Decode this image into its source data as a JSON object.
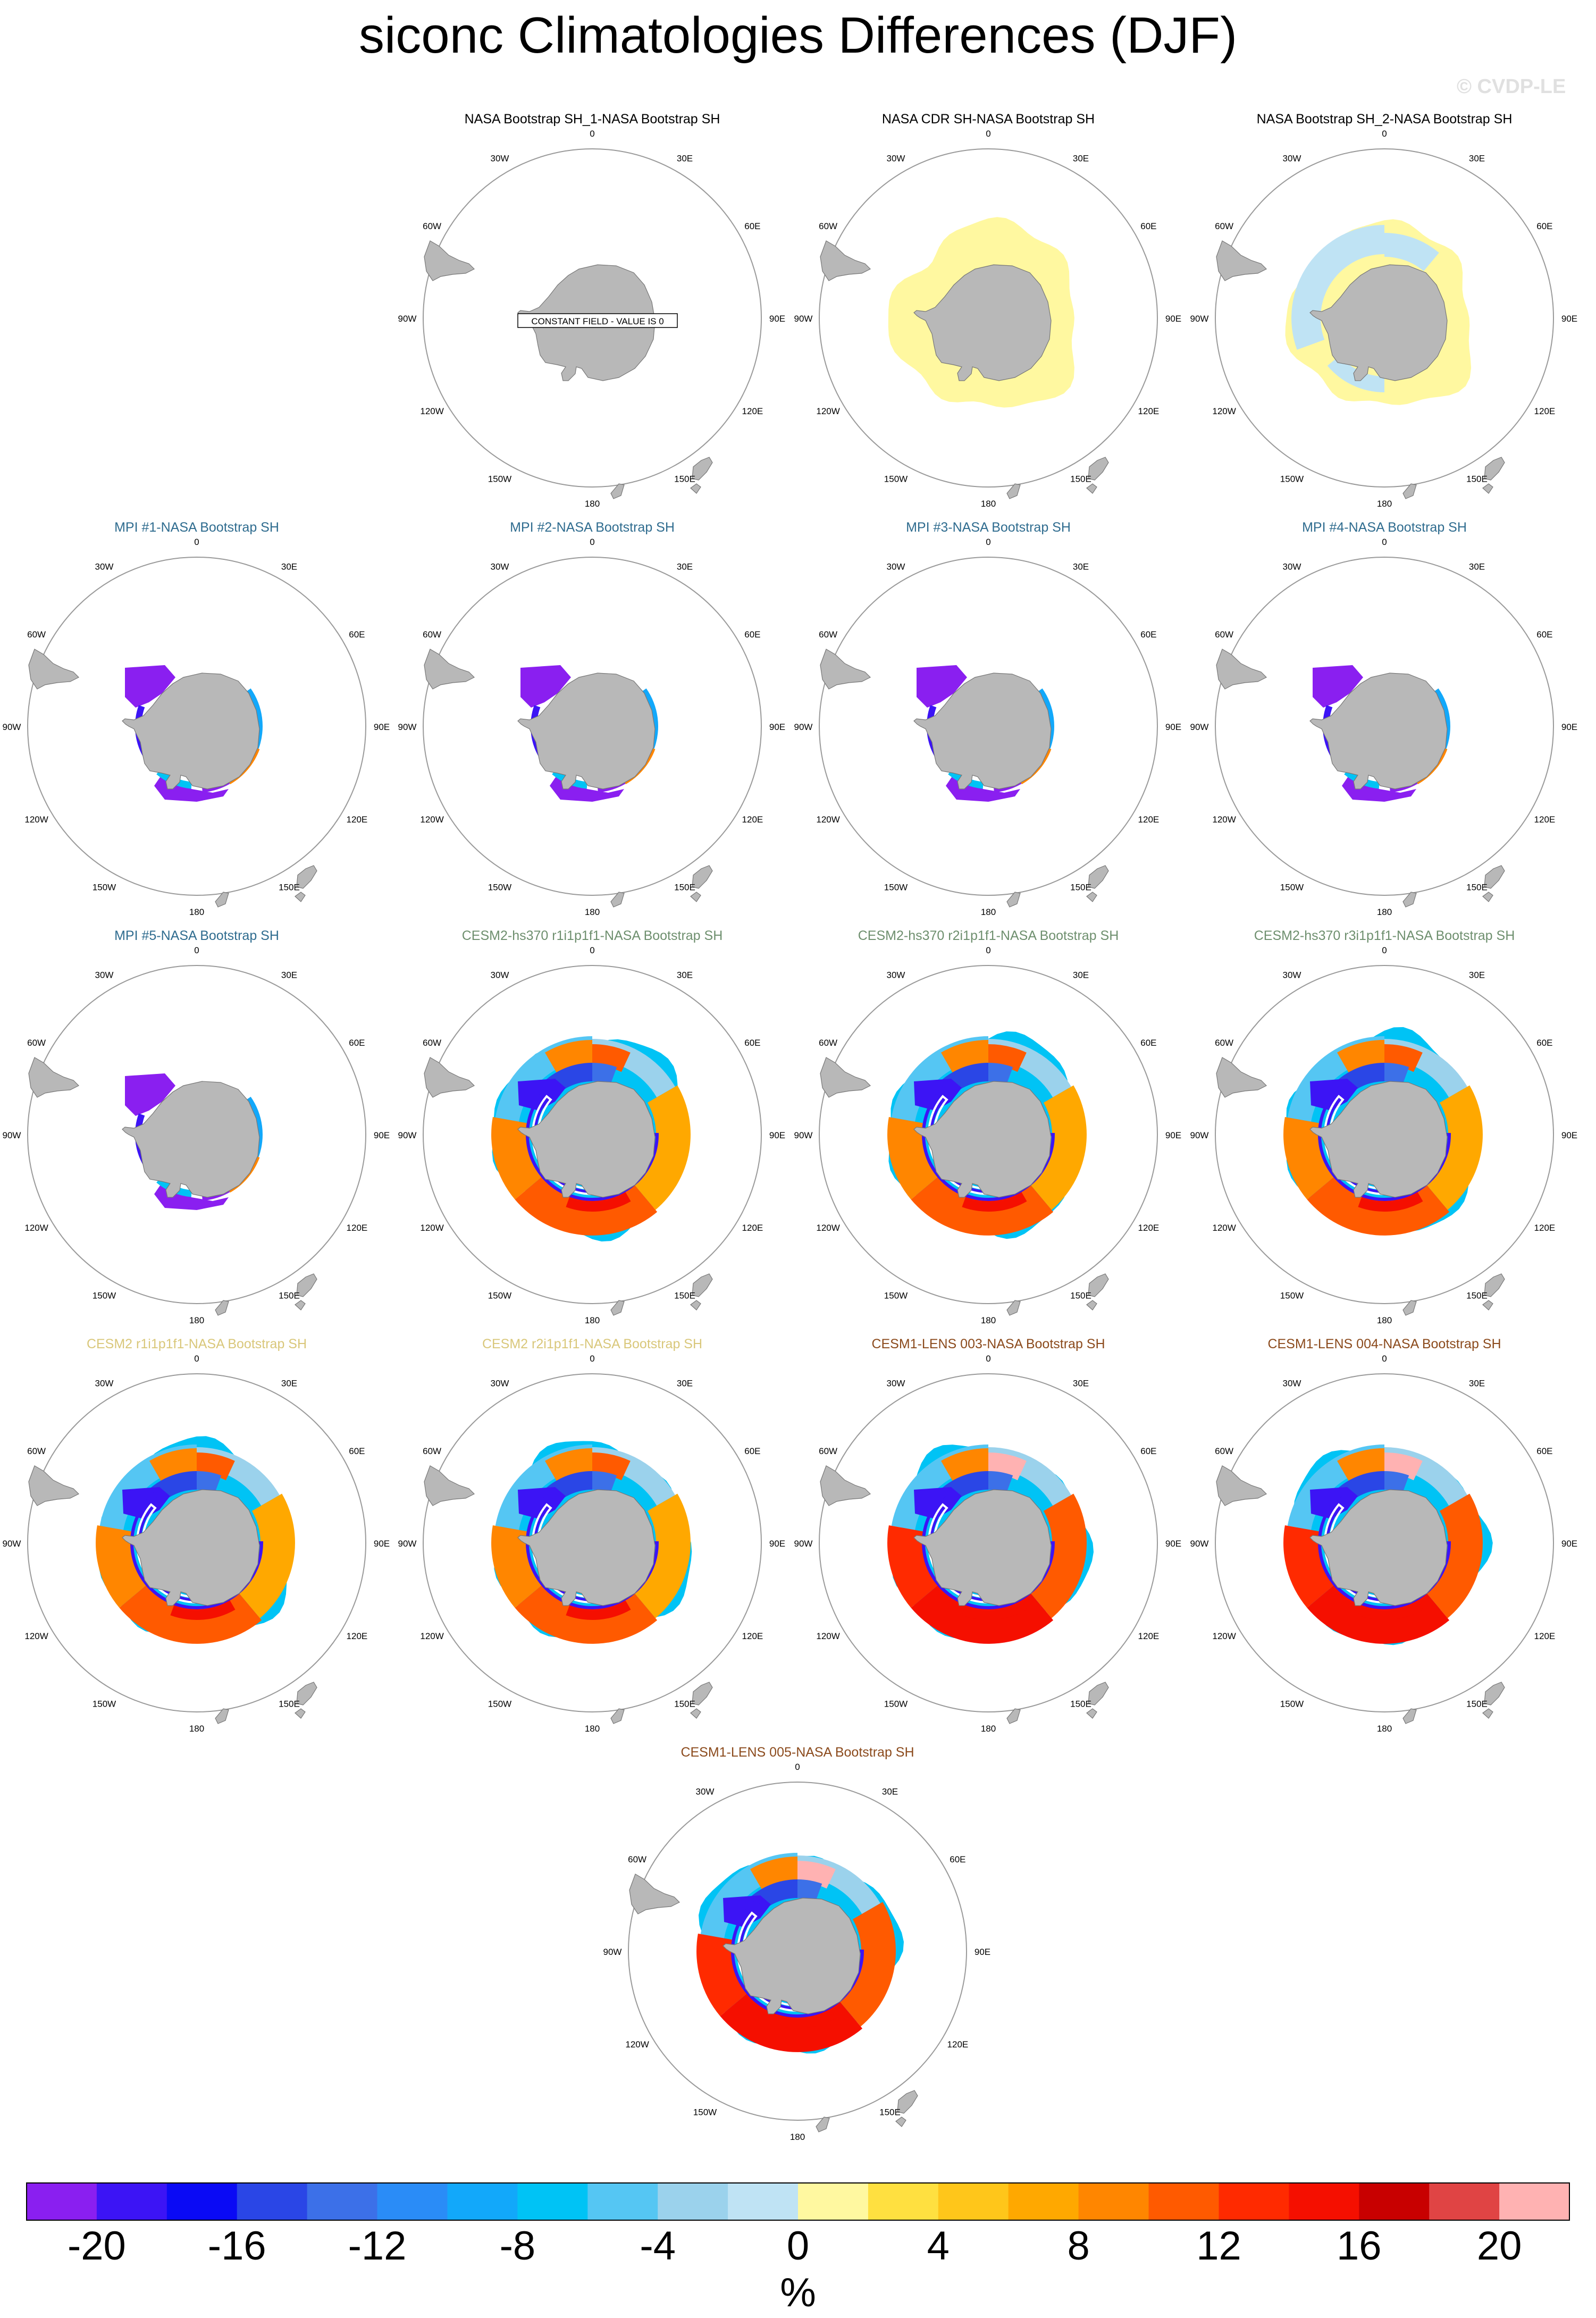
{
  "title": "siconc Climatologies Differences (DJF)",
  "watermark": "© CVDP-LE",
  "colors": {
    "land": "#b8b8b8",
    "obs_title": "#000000",
    "mpi_title": "#2f6c8f",
    "cesm2hs_title": "#6e8f6e",
    "cesm2_title": "#d9c77a",
    "cesm1_title": "#8b4a1c"
  },
  "chart_data": {
    "type": "heatmap",
    "projection": "south polar stereographic",
    "variable": "siconc",
    "season": "DJF",
    "lon_labels": [
      "0",
      "30E",
      "60E",
      "90E",
      "120E",
      "150E",
      "180",
      "150W",
      "120W",
      "90W",
      "60W",
      "30W"
    ],
    "colorbar": {
      "units": "%",
      "ticks": [
        "-20",
        "-16",
        "-12",
        "-8",
        "-4",
        "0",
        "4",
        "8",
        "12",
        "16",
        "20"
      ],
      "colors": [
        "#8a1ff0",
        "#3c14f5",
        "#0a0af5",
        "#2a46e6",
        "#3c70e8",
        "#2a8cf7",
        "#12a8fa",
        "#00c3f5",
        "#55c6f3",
        "#9bd2ec",
        "#bfe3f4",
        "#fff8a0",
        "#ffe040",
        "#ffc61a",
        "#ffa800",
        "#ff8600",
        "#ff5a00",
        "#ff2a00",
        "#f50f00",
        "#c80000",
        "#e04444",
        "#ffb2b2"
      ]
    },
    "panels": [
      {
        "id": "p1",
        "title": "NASA Bootstrap SH_1-NASA Bootstrap SH",
        "group": "obs",
        "pattern": "constant",
        "note": "CONSTANT FIELD - VALUE IS 0"
      },
      {
        "id": "p2",
        "title": "NASA CDR SH-NASA Bootstrap SH",
        "group": "obs",
        "pattern": "cdr"
      },
      {
        "id": "p3",
        "title": "NASA Bootstrap SH_2-NASA Bootstrap SH",
        "group": "obs",
        "pattern": "bs2"
      },
      {
        "id": "p4",
        "title": "MPI #1-NASA Bootstrap SH",
        "group": "mpi",
        "pattern": "mpi"
      },
      {
        "id": "p5",
        "title": "MPI #2-NASA Bootstrap SH",
        "group": "mpi",
        "pattern": "mpi"
      },
      {
        "id": "p6",
        "title": "MPI #3-NASA Bootstrap SH",
        "group": "mpi",
        "pattern": "mpi"
      },
      {
        "id": "p7",
        "title": "MPI #4-NASA Bootstrap SH",
        "group": "mpi",
        "pattern": "mpi"
      },
      {
        "id": "p8",
        "title": "MPI #5-NASA Bootstrap SH",
        "group": "mpi",
        "pattern": "mpi"
      },
      {
        "id": "p9",
        "title": "CESM2-hs370 r1i1p1f1-NASA Bootstrap SH",
        "group": "cesm2hs",
        "pattern": "cesm2"
      },
      {
        "id": "p10",
        "title": "CESM2-hs370 r2i1p1f1-NASA Bootstrap SH",
        "group": "cesm2hs",
        "pattern": "cesm2"
      },
      {
        "id": "p11",
        "title": "CESM2-hs370 r3i1p1f1-NASA Bootstrap SH",
        "group": "cesm2hs",
        "pattern": "cesm2"
      },
      {
        "id": "p12",
        "title": "CESM2 r1i1p1f1-NASA Bootstrap SH",
        "group": "cesm2",
        "pattern": "cesm2"
      },
      {
        "id": "p13",
        "title": "CESM2 r2i1p1f1-NASA Bootstrap SH",
        "group": "cesm2",
        "pattern": "cesm2"
      },
      {
        "id": "p14",
        "title": "CESM1-LENS 003-NASA Bootstrap SH",
        "group": "cesm1",
        "pattern": "cesm1"
      },
      {
        "id": "p15",
        "title": "CESM1-LENS 004-NASA Bootstrap SH",
        "group": "cesm1",
        "pattern": "cesm1"
      },
      {
        "id": "p16",
        "title": "CESM1-LENS 005-NASA Bootstrap SH",
        "group": "cesm1",
        "pattern": "cesm1"
      }
    ]
  }
}
